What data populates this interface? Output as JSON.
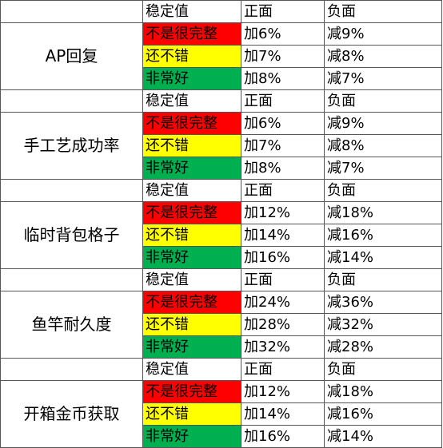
{
  "groups": [
    {
      "name": "AP回复",
      "header": [
        "稳定值",
        "正面",
        "负面"
      ],
      "rows": [
        [
          "不是很完整",
          "加6%",
          "减9%"
        ],
        [
          "还不错",
          "加7%",
          "减8%"
        ],
        [
          "非常好",
          "加8%",
          "减7%"
        ]
      ]
    },
    {
      "name": "手工艺成功率",
      "header": [
        "稳定值",
        "正面",
        "负面"
      ],
      "rows": [
        [
          "不是很完整",
          "加6%",
          "减9%"
        ],
        [
          "还不错",
          "加7%",
          "减8%"
        ],
        [
          "非常好",
          "加8%",
          "减7%"
        ]
      ]
    },
    {
      "name": "临时背包格子",
      "header": [
        "稳定值",
        "正面",
        "负面"
      ],
      "rows": [
        [
          "不是很完整",
          "加12%",
          "减18%"
        ],
        [
          "还不错",
          "加14%",
          "减16%"
        ],
        [
          "非常好",
          "加16%",
          "减14%"
        ]
      ]
    },
    {
      "name": "鱼竿耐久度",
      "header": [
        "稳定值",
        "正面",
        "负面"
      ],
      "rows": [
        [
          "不是很完整",
          "加24%",
          "减36%"
        ],
        [
          "还不错",
          "加28%",
          "减32%"
        ],
        [
          "非常好",
          "加32%",
          "减28%"
        ]
      ]
    },
    {
      "name": "开箱金币获取",
      "header": [
        "稳定值",
        "正面",
        "负面"
      ],
      "rows": [
        [
          "不是很完整",
          "加12%",
          "减18%"
        ],
        [
          "还不错",
          "加14%",
          "减16%"
        ],
        [
          "非常好",
          "加16%",
          "减14%"
        ]
      ]
    }
  ]
}
